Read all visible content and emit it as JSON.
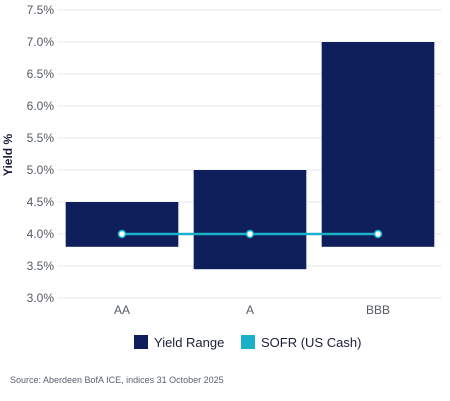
{
  "chart_data": {
    "type": "bar",
    "categories": [
      "AA",
      "A",
      "BBB"
    ],
    "ylabel": "Yield %",
    "ylim": [
      3.0,
      7.5
    ],
    "yticks": [
      "7.5%",
      "7.0%",
      "6.5%",
      "6.0%",
      "5.5%",
      "5.0%",
      "4.5%",
      "4.0%",
      "3.5%",
      "3.0%"
    ],
    "grid": true,
    "legend_position": "bottom",
    "series": [
      {
        "name": "Yield Range",
        "type": "floating-bar",
        "low": [
          3.8,
          3.45,
          3.8
        ],
        "high": [
          4.5,
          5.0,
          7.0
        ],
        "color": "#0f1f5c"
      },
      {
        "name": "SOFR (US Cash)",
        "type": "line",
        "values": [
          4.0,
          4.0,
          4.0
        ],
        "color": "#1ab0c8"
      }
    ]
  },
  "source": "Source: Aberdeen BofA ICE, indices 31 October 2025"
}
